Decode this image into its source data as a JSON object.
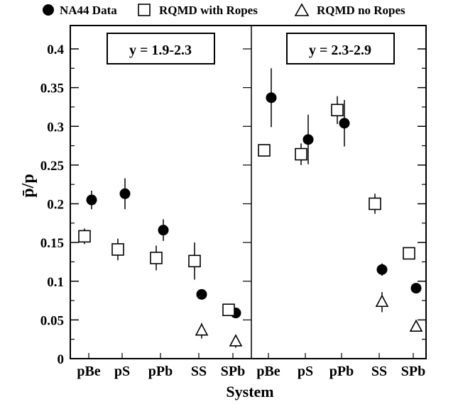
{
  "chart_data": {
    "type": "scatter",
    "ylabel": "p̄/p",
    "xlabel": "System",
    "ylim": [
      0,
      0.43
    ],
    "yticks": [
      0,
      0.05,
      0.1,
      0.15,
      0.2,
      0.25,
      0.3,
      0.35,
      0.4
    ],
    "ytick_labels": [
      "0",
      "0.05",
      "0.1",
      "0.15",
      "0.2",
      "0.25",
      "0.3",
      "0.35",
      "0.4"
    ],
    "legend": {
      "placement": "top",
      "entries": [
        {
          "name": "NA44 Data",
          "marker": "filled-circle"
        },
        {
          "name": "RQMD with Ropes",
          "marker": "open-square"
        },
        {
          "name": "RQMD no Ropes",
          "marker": "open-triangle"
        }
      ]
    },
    "panels": [
      {
        "label": "y = 1.9-2.3",
        "categories": [
          "pBe",
          "pS",
          "pPb",
          "SS",
          "SPb"
        ],
        "series": [
          {
            "name": "NA44 Data",
            "values": [
              0.205,
              0.213,
              0.166,
              0.083,
              0.059
            ],
            "err": [
              0.012,
              0.02,
              0.014,
              0.0,
              0.0
            ]
          },
          {
            "name": "RQMD with Ropes",
            "values": [
              0.158,
              0.141,
              0.13,
              0.126,
              0.063
            ],
            "err": [
              0.01,
              0.014,
              0.016,
              0.024,
              0.0
            ]
          },
          {
            "name": "RQMD no Ropes",
            "values": [
              null,
              null,
              null,
              0.036,
              0.022
            ],
            "err": [
              null,
              null,
              null,
              0.01,
              0.008
            ]
          }
        ]
      },
      {
        "label": "y = 2.3-2.9",
        "categories": [
          "pBe",
          "pS",
          "pPb",
          "SS",
          "SPb"
        ],
        "series": [
          {
            "name": "NA44 Data",
            "values": [
              0.337,
              0.283,
              0.304,
              0.115,
              0.091
            ],
            "err": [
              0.038,
              0.032,
              0.03,
              0.008,
              0.0
            ]
          },
          {
            "name": "RQMD with Ropes",
            "values": [
              0.269,
              0.264,
              0.321,
              0.2,
              0.136
            ],
            "err": [
              0.008,
              0.014,
              0.018,
              0.013,
              0.0
            ]
          },
          {
            "name": "RQMD no Ropes",
            "values": [
              null,
              null,
              null,
              0.073,
              0.041
            ],
            "err": [
              null,
              null,
              null,
              0.013,
              0.0
            ]
          }
        ]
      }
    ]
  }
}
